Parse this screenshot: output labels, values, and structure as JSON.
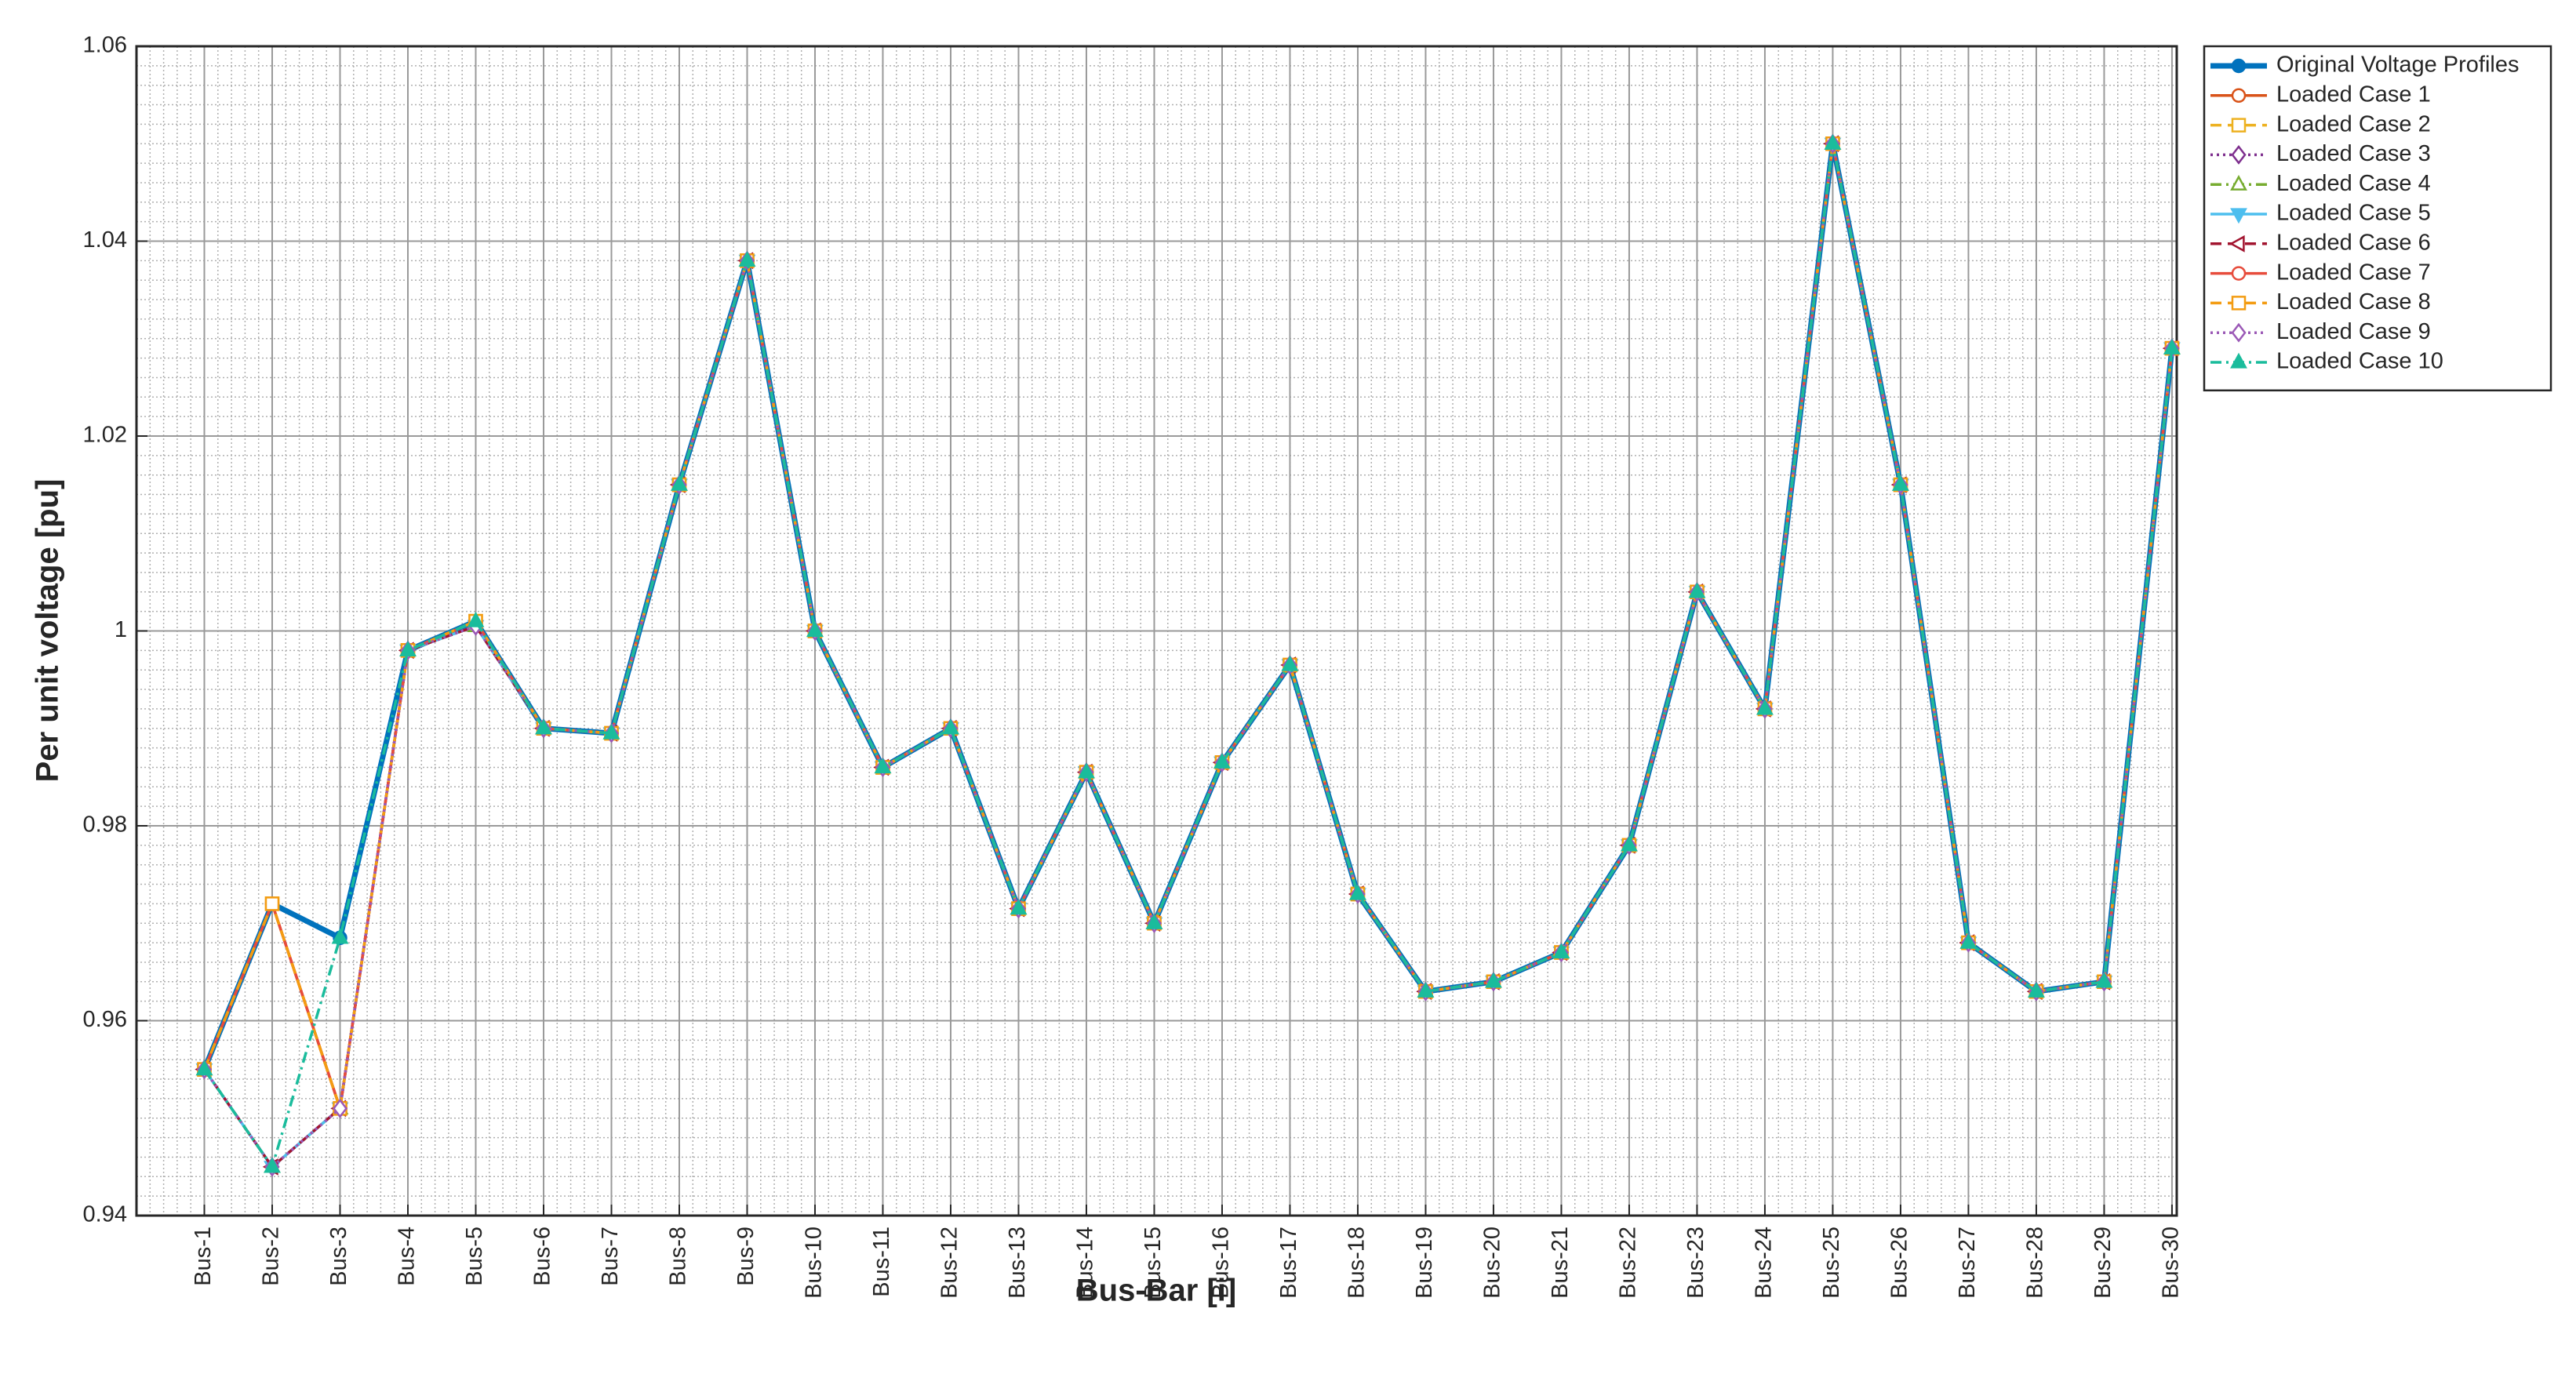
{
  "chart_data": {
    "type": "line",
    "x_label": "Bus-Bar [i]",
    "y_label": "Per unit voltage [pu]",
    "categories": [
      "Bus-1",
      "Bus-2",
      "Bus-3",
      "Bus-4",
      "Bus-5",
      "Bus-6",
      "Bus-7",
      "Bus-8",
      "Bus-9",
      "Bus-10",
      "Bus-11",
      "Bus-12",
      "Bus-13",
      "Bus-14",
      "Bus-15",
      "Bus-16",
      "Bus-17",
      "Bus-18",
      "Bus-19",
      "Bus-20",
      "Bus-21",
      "Bus-22",
      "Bus-23",
      "Bus-24",
      "Bus-25",
      "Bus-26",
      "Bus-27",
      "Bus-28",
      "Bus-29",
      "Bus-30"
    ],
    "ylim": [
      0.94,
      1.06
    ],
    "yticks": [
      0.94,
      0.96,
      0.98,
      1,
      1.02,
      1.04,
      1.06
    ],
    "grid": true,
    "minor_grid": true,
    "legend": "outside-top-right",
    "series": [
      {
        "name": "Original Voltage Profiles",
        "color": "#0072BD",
        "marker": "circle",
        "filled": true,
        "dash": "solid",
        "width": 2,
        "values": [
          0.955,
          0.972,
          0.9685,
          0.998,
          1.001,
          0.99,
          0.9895,
          1.015,
          1.038,
          1.0,
          0.986,
          0.99,
          0.9715,
          0.9855,
          0.97,
          0.9865,
          0.9965,
          0.973,
          0.963,
          0.964,
          0.967,
          0.978,
          1.004,
          0.992,
          1.05,
          1.015,
          0.968,
          0.963,
          0.964,
          1.029
        ]
      },
      {
        "name": "Loaded Case 1",
        "color": "#D95319",
        "marker": "circle",
        "filled": false,
        "dash": "solid",
        "width": 1,
        "values": [
          0.955,
          0.972,
          0.951,
          0.998,
          1.001,
          0.99,
          0.9895,
          1.015,
          1.038,
          1.0,
          0.986,
          0.99,
          0.9715,
          0.9855,
          0.97,
          0.9865,
          0.9965,
          0.973,
          0.963,
          0.964,
          0.967,
          0.978,
          1.004,
          0.992,
          1.05,
          1.015,
          0.968,
          0.963,
          0.964,
          1.029
        ]
      },
      {
        "name": "Loaded Case 2",
        "color": "#EDB120",
        "marker": "square",
        "filled": false,
        "dash": "dashed",
        "width": 1,
        "values": [
          0.955,
          0.972,
          0.951,
          0.998,
          1.001,
          0.99,
          0.9895,
          1.015,
          1.038,
          1.0,
          0.986,
          0.99,
          0.9715,
          0.9855,
          0.97,
          0.9865,
          0.9965,
          0.973,
          0.963,
          0.964,
          0.967,
          0.978,
          1.004,
          0.992,
          1.05,
          1.015,
          0.968,
          0.963,
          0.964,
          1.029
        ]
      },
      {
        "name": "Loaded Case 3",
        "color": "#7E2F8E",
        "marker": "diamond",
        "filled": false,
        "dash": "dotted",
        "width": 1,
        "values": [
          0.955,
          0.945,
          0.951,
          0.998,
          1.0005,
          0.99,
          0.9895,
          1.015,
          1.038,
          1.0,
          0.986,
          0.99,
          0.9715,
          0.9855,
          0.97,
          0.9865,
          0.9965,
          0.973,
          0.963,
          0.964,
          0.967,
          0.978,
          1.004,
          0.992,
          1.05,
          1.015,
          0.968,
          0.963,
          0.964,
          1.029
        ]
      },
      {
        "name": "Loaded Case 4",
        "color": "#77AC30",
        "marker": "triangle-up",
        "filled": false,
        "dash": "dashdot",
        "width": 1,
        "values": [
          0.955,
          0.945,
          0.951,
          0.998,
          1.0005,
          0.99,
          0.9895,
          1.015,
          1.038,
          1.0,
          0.986,
          0.99,
          0.9715,
          0.9855,
          0.97,
          0.9865,
          0.9965,
          0.973,
          0.963,
          0.964,
          0.967,
          0.978,
          1.004,
          0.992,
          1.05,
          1.015,
          0.968,
          0.963,
          0.964,
          1.029
        ]
      },
      {
        "name": "Loaded Case 5",
        "color": "#4DBEEE",
        "marker": "triangle-down",
        "filled": true,
        "dash": "solid",
        "width": 1,
        "values": [
          0.955,
          0.945,
          0.951,
          0.998,
          1.0005,
          0.99,
          0.9895,
          1.015,
          1.038,
          1.0,
          0.986,
          0.99,
          0.9715,
          0.9855,
          0.97,
          0.9865,
          0.9965,
          0.973,
          0.963,
          0.964,
          0.967,
          0.978,
          1.004,
          0.992,
          1.05,
          1.015,
          0.968,
          0.963,
          0.964,
          1.029
        ]
      },
      {
        "name": "Loaded Case 6",
        "color": "#A2142F",
        "marker": "triangle-left",
        "filled": false,
        "dash": "dashed",
        "width": 1,
        "values": [
          0.955,
          0.945,
          0.951,
          0.998,
          1.0005,
          0.99,
          0.9895,
          1.015,
          1.038,
          1.0,
          0.986,
          0.99,
          0.9715,
          0.9855,
          0.97,
          0.9865,
          0.9965,
          0.973,
          0.963,
          0.964,
          0.967,
          0.978,
          1.004,
          0.992,
          1.05,
          1.015,
          0.968,
          0.963,
          0.964,
          1.029
        ]
      },
      {
        "name": "Loaded Case 7",
        "color": "#E74C3C",
        "marker": "circle",
        "filled": false,
        "dash": "solid",
        "width": 1,
        "values": [
          0.955,
          0.972,
          0.951,
          0.998,
          1.001,
          0.99,
          0.9895,
          1.015,
          1.038,
          1.0,
          0.986,
          0.99,
          0.9715,
          0.9855,
          0.97,
          0.9865,
          0.9965,
          0.973,
          0.963,
          0.964,
          0.967,
          0.978,
          1.004,
          0.992,
          1.05,
          1.015,
          0.968,
          0.963,
          0.964,
          1.029
        ]
      },
      {
        "name": "Loaded Case 8",
        "color": "#F39C12",
        "marker": "square",
        "filled": false,
        "dash": "dashed",
        "width": 1,
        "values": [
          0.955,
          0.972,
          0.951,
          0.998,
          1.001,
          0.99,
          0.9895,
          1.015,
          1.038,
          1.0,
          0.986,
          0.99,
          0.9715,
          0.9855,
          0.97,
          0.9865,
          0.9965,
          0.973,
          0.963,
          0.964,
          0.967,
          0.978,
          1.004,
          0.992,
          1.05,
          1.015,
          0.968,
          0.963,
          0.964,
          1.029
        ]
      },
      {
        "name": "Loaded Case 9",
        "color": "#9B59B6",
        "marker": "diamond",
        "filled": false,
        "dash": "dotted",
        "width": 1,
        "values": [
          0.955,
          0.945,
          0.951,
          0.998,
          1.0005,
          0.99,
          0.9895,
          1.015,
          1.038,
          1.0,
          0.986,
          0.99,
          0.9715,
          0.9855,
          0.97,
          0.9865,
          0.9965,
          0.973,
          0.963,
          0.964,
          0.967,
          0.978,
          1.004,
          0.992,
          1.05,
          1.015,
          0.968,
          0.963,
          0.964,
          1.029
        ]
      },
      {
        "name": "Loaded Case 10",
        "color": "#1ABC9C",
        "marker": "triangle-up",
        "filled": true,
        "dash": "dashdot",
        "width": 1,
        "values": [
          0.955,
          0.945,
          0.9685,
          0.998,
          1.001,
          0.99,
          0.9895,
          1.015,
          1.038,
          1.0,
          0.986,
          0.99,
          0.9715,
          0.9855,
          0.97,
          0.9865,
          0.9965,
          0.973,
          0.963,
          0.964,
          0.967,
          0.978,
          1.004,
          0.992,
          1.05,
          1.015,
          0.968,
          0.963,
          0.964,
          1.029
        ]
      }
    ]
  }
}
